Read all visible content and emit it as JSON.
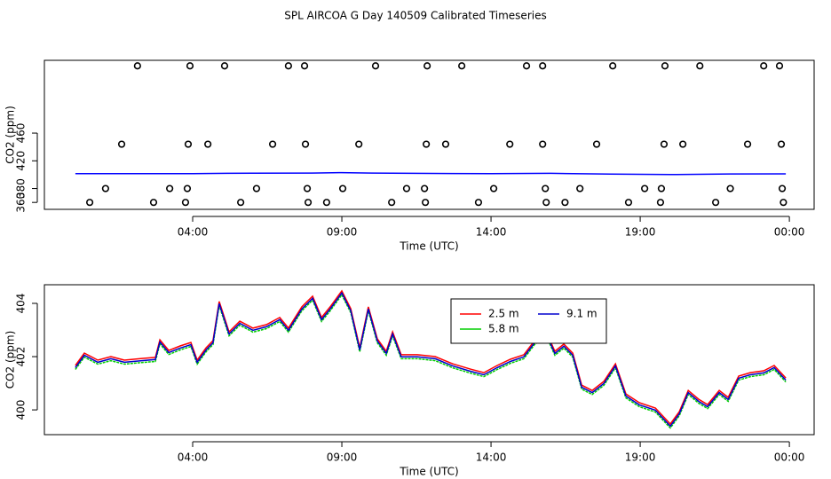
{
  "title": "SPL AIRCOA G  Day 140509  Calibrated Timeseries",
  "chart_data": [
    {
      "type": "scatter",
      "x_label": "Time (UTC)",
      "y_label": "CO2 (ppm)",
      "xlim": [
        -0.97,
        24.83
      ],
      "ylim": [
        350,
        565
      ],
      "xticks": [
        {
          "value": 4,
          "label": "04:00"
        },
        {
          "value": 9,
          "label": "09:00"
        },
        {
          "value": 14,
          "label": "14:00"
        },
        {
          "value": 19,
          "label": "19:00"
        },
        {
          "value": 24,
          "label": "00:00"
        }
      ],
      "yticks": [
        360,
        380,
        420,
        460
      ],
      "points": {
        "color": "#000000",
        "x": [
          2.15,
          3.91,
          5.07,
          7.21,
          7.75,
          10.13,
          11.86,
          13.02,
          15.19,
          15.73,
          18.08,
          19.83,
          21.0,
          23.14,
          23.67,
          1.62,
          3.85,
          4.51,
          6.68,
          7.78,
          9.57,
          11.83,
          12.48,
          14.63,
          15.73,
          17.54,
          19.8,
          20.43,
          22.6,
          23.73,
          1.08,
          3.23,
          3.82,
          6.14,
          7.84,
          9.03,
          11.17,
          11.77,
          14.09,
          15.82,
          16.98,
          19.15,
          19.71,
          22.02,
          23.76,
          0.55,
          2.69,
          3.76,
          5.61,
          7.87,
          8.49,
          10.67,
          11.8,
          13.58,
          15.85,
          16.48,
          18.61,
          19.68,
          21.53,
          23.8
        ],
        "values": [
          557,
          557,
          557,
          557,
          557,
          557,
          557,
          557,
          557,
          557,
          557,
          557,
          557,
          557,
          557,
          444,
          444,
          444,
          444,
          444,
          444,
          444,
          444,
          444,
          444,
          444,
          444,
          444,
          444,
          444,
          380,
          380,
          380,
          380,
          380,
          380,
          380,
          380,
          380,
          380,
          380,
          380,
          380,
          380,
          380,
          360,
          360,
          360,
          360,
          360,
          360,
          360,
          360,
          360,
          360,
          360,
          360,
          360,
          360,
          360
        ]
      },
      "line": {
        "color": "#0000ff",
        "x": [
          0.07,
          2,
          4,
          6,
          8,
          9,
          10,
          12,
          14,
          16,
          18,
          20,
          22,
          23.88
        ],
        "values": [
          401.5,
          401.4,
          401.6,
          402.2,
          402.4,
          403,
          402.4,
          401.8,
          401.5,
          401.9,
          400.8,
          400.2,
          401,
          401.2
        ]
      }
    },
    {
      "type": "line",
      "x_label": "Time (UTC)",
      "y_label": "CO2 (ppm)",
      "legend": "top",
      "xlim": [
        -0.97,
        24.83
      ],
      "ylim": [
        399.07,
        404.7
      ],
      "xticks": [
        {
          "value": 4,
          "label": "04:00"
        },
        {
          "value": 9,
          "label": "09:00"
        },
        {
          "value": 14,
          "label": "14:00"
        },
        {
          "value": 19,
          "label": "19:00"
        },
        {
          "value": 24,
          "label": "00:00"
        }
      ],
      "yticks": [
        400,
        402,
        404
      ],
      "x": [
        0.07,
        0.37,
        0.82,
        1.26,
        1.71,
        2.3,
        2.75,
        2.9,
        3.2,
        3.58,
        3.94,
        4.15,
        4.45,
        4.68,
        4.89,
        5.22,
        5.58,
        6.02,
        6.47,
        6.92,
        7.21,
        7.66,
        8.02,
        8.32,
        8.61,
        9.0,
        9.3,
        9.6,
        9.89,
        10.19,
        10.49,
        10.7,
        10.99,
        11.53,
        12.13,
        12.72,
        13.32,
        13.76,
        14.21,
        14.65,
        15.1,
        15.46,
        15.85,
        16.14,
        16.44,
        16.74,
        17.04,
        17.39,
        17.78,
        18.17,
        18.52,
        18.97,
        19.51,
        20.01,
        20.31,
        20.61,
        20.96,
        21.26,
        21.65,
        21.95,
        22.3,
        22.69,
        23.14,
        23.49,
        23.88
      ],
      "series": [
        {
          "name": "2.5 m",
          "color": "#ff0000",
          "values": [
            401.67,
            402.13,
            401.87,
            402.0,
            401.87,
            401.93,
            401.97,
            402.63,
            402.23,
            402.4,
            402.53,
            401.87,
            402.33,
            402.6,
            404.07,
            402.93,
            403.33,
            403.07,
            403.2,
            403.47,
            403.07,
            403.87,
            404.27,
            403.47,
            403.87,
            404.47,
            403.8,
            402.33,
            403.87,
            402.67,
            402.2,
            402.93,
            402.07,
            402.07,
            402.0,
            401.73,
            401.53,
            401.4,
            401.67,
            401.9,
            402.07,
            402.6,
            402.93,
            402.2,
            402.47,
            402.13,
            400.93,
            400.73,
            401.07,
            401.73,
            400.6,
            400.27,
            400.07,
            399.47,
            399.93,
            400.73,
            400.4,
            400.2,
            400.73,
            400.47,
            401.27,
            401.4,
            401.47,
            401.67,
            401.2
          ]
        },
        {
          "name": "5.8 m",
          "color": "#00cd00",
          "values": [
            401.52,
            401.98,
            401.72,
            401.85,
            401.72,
            401.78,
            401.82,
            402.48,
            402.08,
            402.25,
            402.38,
            401.72,
            402.18,
            402.45,
            403.92,
            402.78,
            403.18,
            402.92,
            403.05,
            403.32,
            402.92,
            403.72,
            404.12,
            403.32,
            403.72,
            404.32,
            403.65,
            402.18,
            403.72,
            402.52,
            402.05,
            402.78,
            401.92,
            401.92,
            401.85,
            401.58,
            401.38,
            401.25,
            401.52,
            401.75,
            401.92,
            402.45,
            402.78,
            402.05,
            402.32,
            401.98,
            400.78,
            400.58,
            400.92,
            401.58,
            400.45,
            400.12,
            399.92,
            399.32,
            399.78,
            400.58,
            400.25,
            400.05,
            400.58,
            400.32,
            401.12,
            401.25,
            401.32,
            401.52,
            401.05
          ]
        },
        {
          "name": "9.1 m",
          "color": "#0000cd",
          "values": [
            401.59,
            402.05,
            401.79,
            401.92,
            401.79,
            401.85,
            401.89,
            402.55,
            402.15,
            402.32,
            402.45,
            401.79,
            402.25,
            402.52,
            403.99,
            402.85,
            403.25,
            402.99,
            403.12,
            403.39,
            402.99,
            403.79,
            404.19,
            403.39,
            403.79,
            404.39,
            403.72,
            402.25,
            403.79,
            402.59,
            402.12,
            402.85,
            401.99,
            401.99,
            401.92,
            401.65,
            401.45,
            401.32,
            401.59,
            401.82,
            401.99,
            402.52,
            402.85,
            402.12,
            402.39,
            402.05,
            400.85,
            400.65,
            400.99,
            401.65,
            400.52,
            400.19,
            399.99,
            399.39,
            399.85,
            400.65,
            400.32,
            400.12,
            400.65,
            400.39,
            401.19,
            401.32,
            401.39,
            401.59,
            401.12
          ]
        }
      ]
    }
  ]
}
